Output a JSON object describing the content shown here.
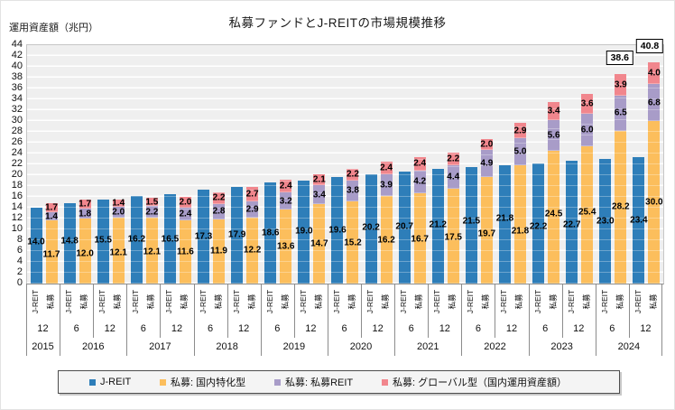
{
  "title": "私募ファンドとJ-REITの市場規模推移",
  "y_axis": {
    "label": "運用資産額（兆円）",
    "min": 0,
    "max": 44,
    "step": 2
  },
  "x_axis": {
    "bar_labels": [
      "J-REIT",
      "私募"
    ],
    "months": [
      "12",
      "6",
      "12",
      "6",
      "12",
      "6",
      "12",
      "6",
      "12",
      "6",
      "12",
      "6",
      "12",
      "6",
      "12",
      "6",
      "12",
      "6",
      "12"
    ],
    "years": [
      {
        "label": "2015",
        "span": 1
      },
      {
        "label": "2016",
        "span": 2
      },
      {
        "label": "2017",
        "span": 2
      },
      {
        "label": "2018",
        "span": 2
      },
      {
        "label": "2019",
        "span": 2
      },
      {
        "label": "2020",
        "span": 2
      },
      {
        "label": "2021",
        "span": 2
      },
      {
        "label": "2022",
        "span": 2
      },
      {
        "label": "2023",
        "span": 2
      },
      {
        "label": "2024",
        "span": 2
      }
    ]
  },
  "legend": [
    {
      "label": "J-REIT",
      "color": "#2e7eb9"
    },
    {
      "label": "私募: 国内特化型",
      "color": "#fcbe5c"
    },
    {
      "label": "私募: 私募REIT",
      "color": "#a89cc8"
    },
    {
      "label": "私募: グローバル型（国内運用資産額）",
      "color": "#f1868d"
    }
  ],
  "chart_data": {
    "type": "bar",
    "subtype": "grouped; J-REIT single bar + 私募 stacked bar per period",
    "title": "私募ファンドとJ-REITの市場規模推移",
    "xlabel": "",
    "ylabel": "運用資産額（兆円）",
    "ylim": [
      0,
      44
    ],
    "ytick_step": 2,
    "grid": "horizontal white lines on gray plot background",
    "legend_position": "bottom",
    "categories": [
      "2015/12",
      "2016/6",
      "2016/12",
      "2017/6",
      "2017/12",
      "2018/6",
      "2018/12",
      "2019/6",
      "2019/12",
      "2020/6",
      "2020/12",
      "2021/6",
      "2021/12",
      "2022/6",
      "2022/12",
      "2023/6",
      "2023/12",
      "2024/6",
      "2024/12"
    ],
    "series": [
      {
        "name": "J-REIT",
        "color": "#2e7eb9",
        "stack": "jreit",
        "values": [
          14.0,
          14.8,
          15.5,
          16.2,
          16.5,
          17.3,
          17.9,
          18.6,
          19.0,
          19.6,
          20.2,
          20.7,
          21.2,
          21.5,
          21.8,
          22.2,
          22.7,
          23.0,
          23.4
        ]
      },
      {
        "name": "私募: 国内特化型",
        "color": "#fcbe5c",
        "stack": "private",
        "values": [
          11.7,
          12.0,
          12.1,
          12.1,
          11.6,
          11.9,
          12.2,
          13.6,
          14.7,
          15.2,
          16.2,
          16.7,
          17.5,
          19.7,
          21.8,
          24.5,
          25.4,
          28.2,
          30.0
        ]
      },
      {
        "name": "私募: 私募REIT",
        "color": "#a89cc8",
        "stack": "private",
        "values": [
          1.4,
          1.8,
          2.0,
          2.2,
          2.4,
          2.8,
          2.9,
          3.2,
          3.4,
          3.8,
          3.9,
          4.2,
          4.4,
          4.9,
          5.0,
          5.6,
          6.0,
          6.5,
          6.8
        ]
      },
      {
        "name": "私募: グローバル型（国内運用資産額）",
        "color": "#f1868d",
        "stack": "private",
        "values": [
          1.7,
          1.7,
          1.4,
          1.5,
          2.0,
          2.2,
          2.7,
          2.4,
          2.1,
          2.2,
          2.4,
          2.4,
          2.2,
          2.0,
          2.9,
          3.4,
          3.6,
          3.9,
          4.0
        ]
      }
    ],
    "totals_annotations": [
      {
        "category": "2024/6",
        "group_index": 17,
        "value": "38.6"
      },
      {
        "category": "2024/12",
        "group_index": 18,
        "value": "40.8"
      }
    ]
  }
}
